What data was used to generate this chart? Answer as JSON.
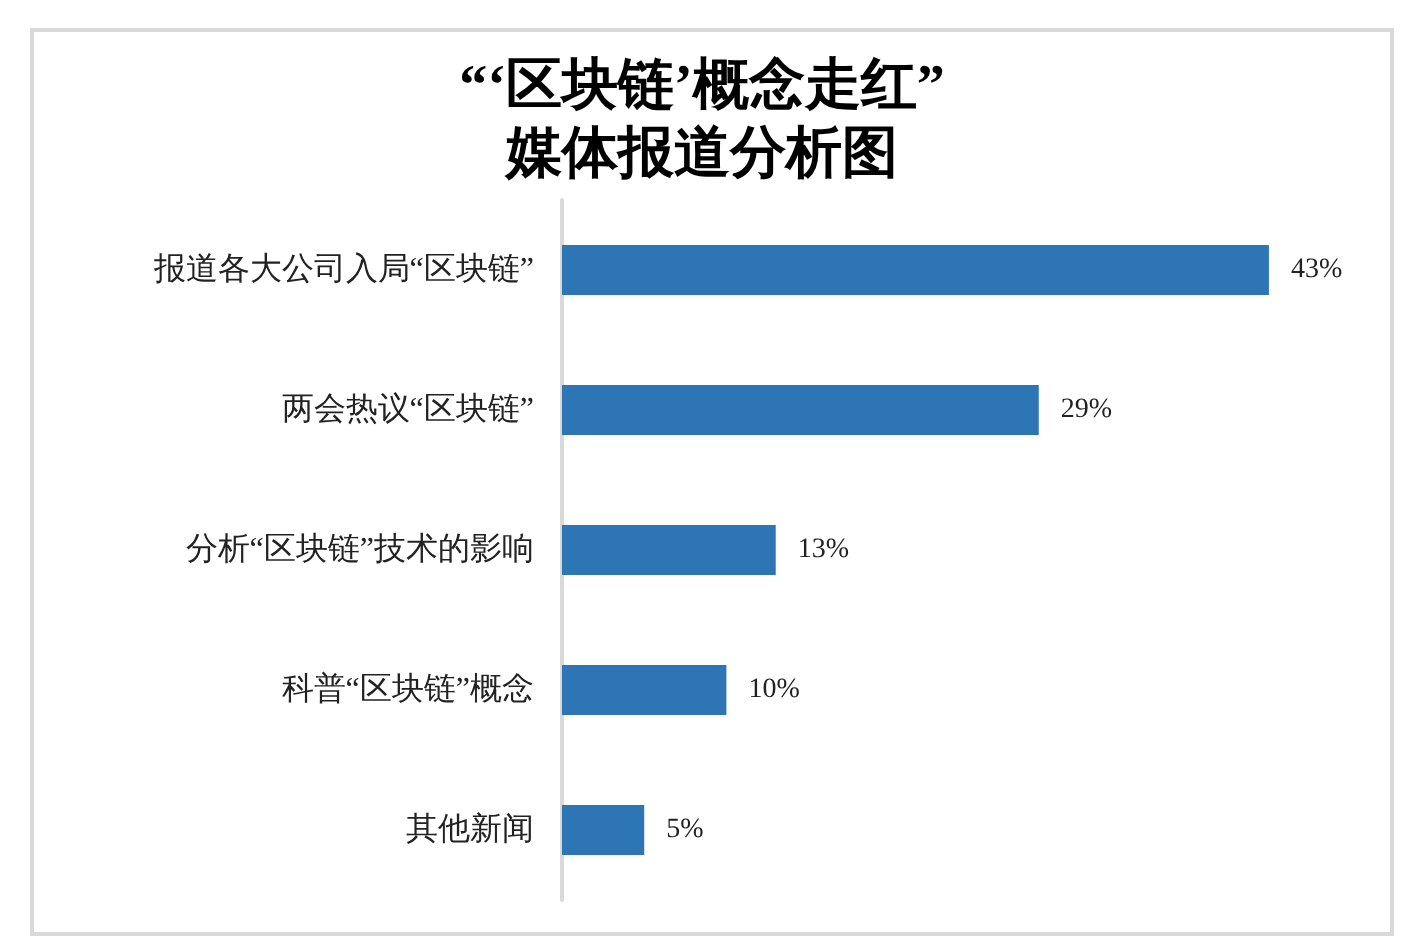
{
  "chart_data": {
    "type": "bar",
    "orientation": "horizontal",
    "title": "“‘区块链’概念走红”",
    "subtitle": "媒体报道分析图",
    "categories": [
      "报道各大公司入局“区块链”",
      "两会热议“区块链”",
      "分析“区块链”技术的影响",
      "科普“区块链”概念",
      "其他新闻"
    ],
    "values": [
      43,
      29,
      13,
      10,
      5
    ],
    "value_labels": [
      "43%",
      "29%",
      "13%",
      "10%",
      "5%"
    ],
    "color": "#2e75b6"
  }
}
